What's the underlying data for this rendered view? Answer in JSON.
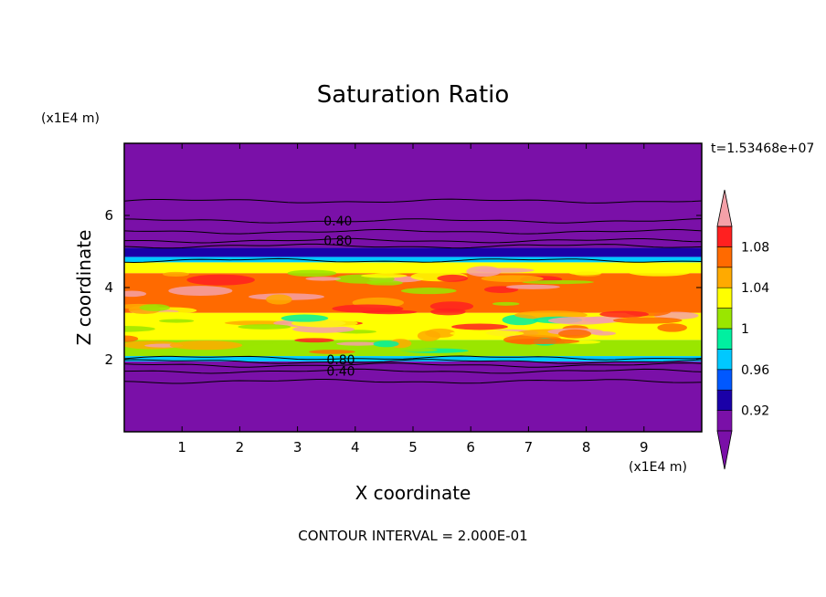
{
  "chart_data": {
    "type": "heatmap",
    "title": "Saturation Ratio",
    "xlabel": "X coordinate",
    "ylabel": "Z coordinate",
    "x_unit": "(x1E4 m)",
    "y_unit": "(x1E4 m)",
    "xlim": [
      0,
      10
    ],
    "ylim": [
      0,
      8
    ],
    "x_ticks": [
      "1",
      "2",
      "3",
      "4",
      "5",
      "6",
      "7",
      "8",
      "9"
    ],
    "y_ticks": [
      "2",
      "4",
      "6"
    ],
    "time_label": "t=1.53468e+07",
    "footer": "CONTOUR INTERVAL = 2.000E-01",
    "colorbar": {
      "levels": [
        0.9,
        0.92,
        0.94,
        0.96,
        0.98,
        1.0,
        1.02,
        1.04,
        1.06,
        1.08,
        1.1
      ],
      "tick_labels": [
        "0.92",
        "0.96",
        "1",
        "1.04",
        "1.08"
      ],
      "tick_values": [
        0.92,
        0.96,
        1.0,
        1.04,
        1.08
      ],
      "under_color": "#7a10a8",
      "over_color": "#f4a0a8",
      "colors": [
        "#7a10a8",
        "#1a00a8",
        "#0058ff",
        "#00c8ff",
        "#00f0a0",
        "#9ae600",
        "#ffff00",
        "#ffaa00",
        "#ff6a00",
        "#ff2020"
      ]
    },
    "contour_labels": [
      {
        "text": "0.40",
        "x": 3.7,
        "z": 5.85
      },
      {
        "text": "0.80",
        "x": 3.7,
        "z": 5.3
      },
      {
        "text": "0.80",
        "x": 3.75,
        "z": 2.0
      },
      {
        "text": "0.40",
        "x": 3.75,
        "z": 1.68
      }
    ],
    "bands": [
      {
        "z0": 0.0,
        "z1": 1.95,
        "level": 0.9
      },
      {
        "z0": 1.95,
        "z1": 2.1,
        "level": 0.97
      },
      {
        "z0": 2.1,
        "z1": 2.55,
        "level": 1.0
      },
      {
        "z0": 2.55,
        "z1": 3.3,
        "level": 1.03
      },
      {
        "z0": 3.3,
        "z1": 4.4,
        "level": 1.06
      },
      {
        "z0": 4.4,
        "z1": 4.7,
        "level": 1.02
      },
      {
        "z0": 4.7,
        "z1": 4.85,
        "level": 0.97
      },
      {
        "z0": 4.85,
        "z1": 5.1,
        "level": 0.92
      },
      {
        "z0": 5.1,
        "z1": 8.0,
        "level": 0.9
      }
    ]
  }
}
